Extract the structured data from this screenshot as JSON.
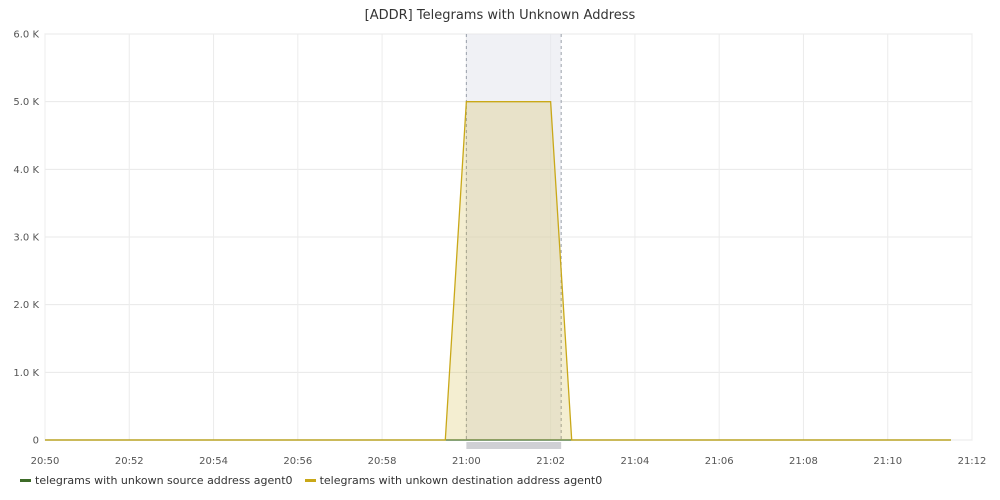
{
  "chart_data": {
    "type": "area",
    "title": "[ADDR] Telegrams with Unknown Address",
    "xlabel": "",
    "ylabel": "",
    "x_range": [
      "20:50",
      "21:12"
    ],
    "ylim": [
      0,
      6000
    ],
    "grid": true,
    "legend_position": "bottom-left",
    "y_ticks": [
      {
        "value": 0,
        "label": "0"
      },
      {
        "value": 1000,
        "label": "1.0 K"
      },
      {
        "value": 2000,
        "label": "2.0 K"
      },
      {
        "value": 3000,
        "label": "3.0 K"
      },
      {
        "value": 4000,
        "label": "4.0 K"
      },
      {
        "value": 5000,
        "label": "5.0 K"
      },
      {
        "value": 6000,
        "label": "6.0 K"
      }
    ],
    "x_ticks": [
      "20:50",
      "20:52",
      "20:54",
      "20:56",
      "20:58",
      "21:00",
      "21:02",
      "21:04",
      "21:06",
      "21:08",
      "21:10",
      "21:12"
    ],
    "selection": {
      "from": "21:00",
      "to": "21:02:15"
    },
    "series": [
      {
        "name": "telegrams with unkown source address agent0",
        "color": "#3d6b28",
        "points": [
          {
            "x": "20:50",
            "y": 0
          },
          {
            "x": "21:11:30",
            "y": 0
          }
        ]
      },
      {
        "name": "telegrams with unkown destination address agent0",
        "color": "#c9a818",
        "points": [
          {
            "x": "20:50",
            "y": 0
          },
          {
            "x": "20:59:30",
            "y": 0
          },
          {
            "x": "21:00",
            "y": 5000
          },
          {
            "x": "21:02",
            "y": 5000
          },
          {
            "x": "21:02:30",
            "y": 0
          },
          {
            "x": "21:11:30",
            "y": 0
          }
        ]
      }
    ]
  }
}
